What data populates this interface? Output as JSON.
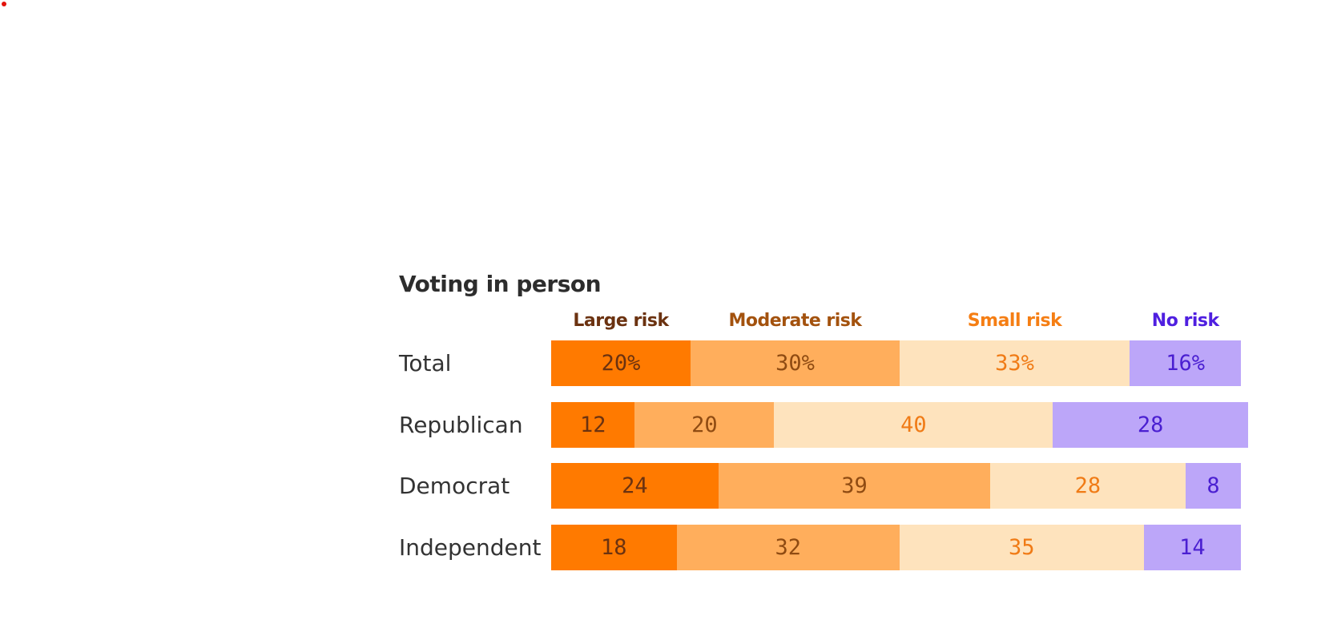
{
  "chart_data": {
    "type": "bar",
    "orientation": "horizontal",
    "stacked": true,
    "title": "Voting in person",
    "categories": [
      "Total",
      "Republican",
      "Democrat",
      "Independent"
    ],
    "series": [
      {
        "name": "Large risk",
        "values": [
          20,
          12,
          24,
          18
        ],
        "labels": [
          "20%",
          "12",
          "24",
          "18"
        ]
      },
      {
        "name": "Moderate risk",
        "values": [
          30,
          20,
          39,
          32
        ],
        "labels": [
          "30%",
          "20",
          "39",
          "32"
        ]
      },
      {
        "name": "Small risk",
        "values": [
          33,
          40,
          28,
          35
        ],
        "labels": [
          "33%",
          "40",
          "28",
          "35"
        ]
      },
      {
        "name": "No risk",
        "values": [
          16,
          28,
          8,
          14
        ],
        "labels": [
          "16%",
          "28",
          "8",
          "14"
        ]
      }
    ],
    "legend_placement": "top",
    "grid": false,
    "colors": {
      "segment_fill": [
        "#ff7a00",
        "#ffae5c",
        "#fee3bd",
        "#bca6f9"
      ],
      "segment_text": [
        "#6b3210",
        "#8f4b12",
        "#f07b16",
        "#4a1fd1"
      ],
      "legend_text": [
        "#6b3210",
        "#a3520e",
        "#f57e14",
        "#4f1fe0"
      ]
    }
  }
}
